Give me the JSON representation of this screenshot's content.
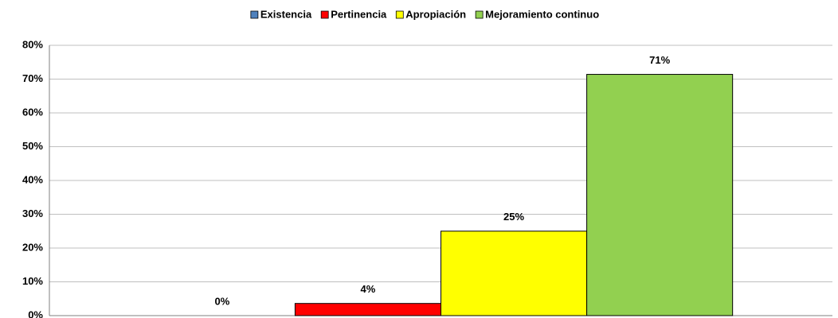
{
  "chart_data": {
    "type": "bar",
    "categories": [
      null
    ],
    "series": [
      {
        "name": "Existencia",
        "color": "#4f81bd",
        "values": [
          0
        ],
        "value_labels": [
          "0%"
        ]
      },
      {
        "name": "Pertinencia",
        "color": "#ff0000",
        "values": [
          3.6
        ],
        "value_labels": [
          "4%"
        ]
      },
      {
        "name": "Apropiación",
        "color": "#ffff00",
        "values": [
          25
        ],
        "value_labels": [
          "25%"
        ]
      },
      {
        "name": "Mejoramiento continuo",
        "color": "#92d050",
        "values": [
          71.4
        ],
        "value_labels": [
          "71%"
        ]
      }
    ],
    "ylim": [
      0,
      80
    ],
    "yticks": [
      {
        "value": 0,
        "label": "0%"
      },
      {
        "value": 10,
        "label": "10%"
      },
      {
        "value": 20,
        "label": "20%"
      },
      {
        "value": 30,
        "label": "30%"
      },
      {
        "value": 40,
        "label": "40%"
      },
      {
        "value": 50,
        "label": "50%"
      },
      {
        "value": 60,
        "label": "60%"
      },
      {
        "value": 70,
        "label": "70%"
      },
      {
        "value": 80,
        "label": "80%"
      }
    ],
    "grid": true,
    "legend": "top"
  }
}
